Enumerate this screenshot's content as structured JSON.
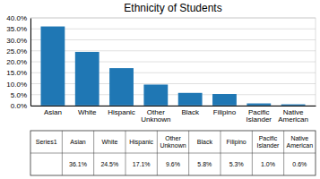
{
  "chart_data": {
    "type": "bar",
    "title": "Ethnicity of Students",
    "categories": [
      "Asian",
      "White",
      "Hispanic",
      "Other\nUnknown",
      "Black",
      "Filipino",
      "Pacific\nIslander",
      "Native\nAmerican"
    ],
    "series": [
      {
        "name": "Series1",
        "values": [
          36.1,
          24.5,
          17.1,
          9.6,
          5.8,
          5.3,
          1.0,
          0.6
        ],
        "value_labels": [
          "36.1%",
          "24.5%",
          "17.1%",
          "9.6%",
          "5.8%",
          "5.3%",
          "1.0%",
          "0.6%"
        ]
      }
    ],
    "ylim": [
      0,
      40
    ],
    "yticks": [
      {
        "value": 0,
        "label": "0.0%"
      },
      {
        "value": 5,
        "label": "5.0%"
      },
      {
        "value": 10,
        "label": "10.0%"
      },
      {
        "value": 15,
        "label": "15.0%"
      },
      {
        "value": 20,
        "label": "20.0%"
      },
      {
        "value": 25,
        "label": "25.0%"
      },
      {
        "value": 30,
        "label": "30.0%"
      },
      {
        "value": 35,
        "label": "35.0%"
      },
      {
        "value": 40,
        "label": "40.0%"
      }
    ],
    "grid": true
  }
}
